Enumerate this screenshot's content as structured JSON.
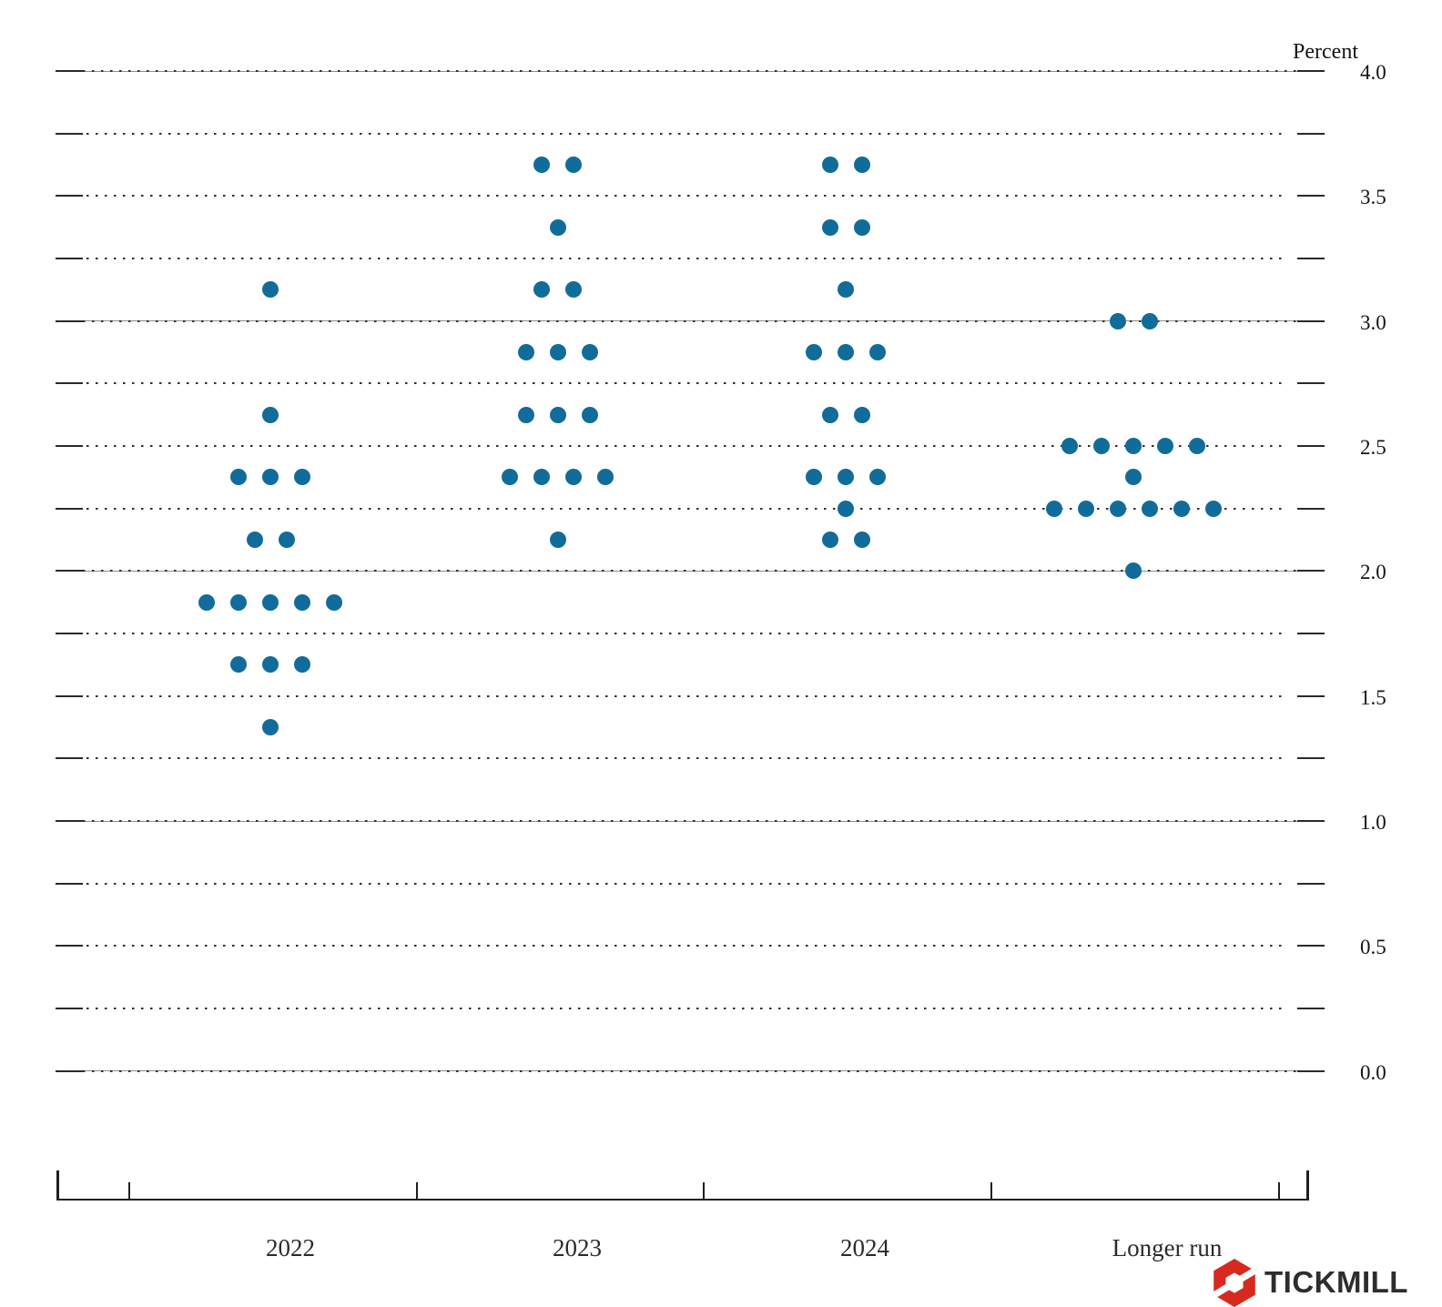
{
  "chart_data": {
    "type": "scatter",
    "variant": "fomc-dot-plot",
    "ylabel": "Percent",
    "ylim": [
      0.0,
      4.0
    ],
    "gridline_step": 0.25,
    "major_line_step": 0.5,
    "y_tick_labels": [
      "4.0",
      "3.5",
      "3.0",
      "2.5",
      "2.0",
      "1.5",
      "1.0",
      "0.5",
      "0.0"
    ],
    "grid": "dotted lines every 0.25, solid lines on whole percents, labels every 0.5",
    "legend_position": "none",
    "dot_color": "#116c9b",
    "categories": [
      "2022",
      "2023",
      "2024",
      "Longer run"
    ],
    "series": [
      {
        "category": "2022",
        "dots": [
          {
            "rate": 3.125,
            "count": 1
          },
          {
            "rate": 2.625,
            "count": 1
          },
          {
            "rate": 2.375,
            "count": 3
          },
          {
            "rate": 2.125,
            "count": 2
          },
          {
            "rate": 1.875,
            "count": 5
          },
          {
            "rate": 1.625,
            "count": 3
          },
          {
            "rate": 1.375,
            "count": 1
          }
        ]
      },
      {
        "category": "2023",
        "dots": [
          {
            "rate": 3.625,
            "count": 2
          },
          {
            "rate": 3.375,
            "count": 1
          },
          {
            "rate": 3.125,
            "count": 2
          },
          {
            "rate": 2.875,
            "count": 3
          },
          {
            "rate": 2.625,
            "count": 3
          },
          {
            "rate": 2.375,
            "count": 4
          },
          {
            "rate": 2.125,
            "count": 1
          }
        ]
      },
      {
        "category": "2024",
        "dots": [
          {
            "rate": 3.625,
            "count": 2
          },
          {
            "rate": 3.375,
            "count": 2
          },
          {
            "rate": 3.125,
            "count": 1
          },
          {
            "rate": 2.875,
            "count": 3
          },
          {
            "rate": 2.625,
            "count": 2
          },
          {
            "rate": 2.375,
            "count": 3
          },
          {
            "rate": 2.25,
            "count": 1
          },
          {
            "rate": 2.125,
            "count": 2
          }
        ]
      },
      {
        "category": "Longer run",
        "dots": [
          {
            "rate": 3.0,
            "count": 2
          },
          {
            "rate": 2.5,
            "count": 5
          },
          {
            "rate": 2.375,
            "count": 1
          },
          {
            "rate": 2.25,
            "count": 6
          },
          {
            "rate": 2.0,
            "count": 1
          }
        ]
      }
    ]
  },
  "branding": {
    "name": "TICKMILL",
    "logo_color": "#d8291f",
    "text_color": "#2d2d2d"
  }
}
